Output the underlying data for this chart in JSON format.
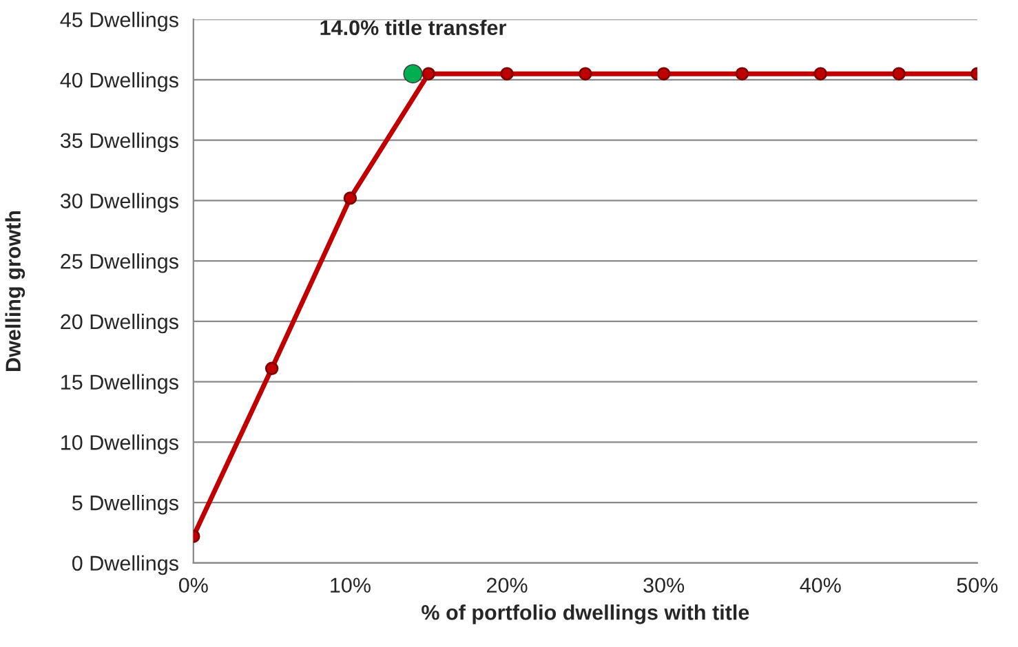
{
  "chart_data": {
    "type": "line",
    "xlabel": "% of portfolio dwellings with title",
    "ylabel": "Dwelling growth",
    "series": [
      {
        "color": "#c00000",
        "x": [
          0,
          5,
          10,
          15,
          20,
          25,
          30,
          35,
          40,
          45,
          50
        ],
        "values": [
          2.2,
          16.1,
          30.2,
          40.5,
          40.5,
          40.5,
          40.5,
          40.5,
          40.5,
          40.5,
          40.5
        ],
        "marker": "circle"
      },
      {
        "type": "scatter",
        "color": "#00b050",
        "x": [
          14
        ],
        "values": [
          40.5
        ],
        "marker": "circle"
      }
    ],
    "annotations": [
      {
        "text": "14.0% title transfer",
        "x": 14,
        "y": 40.5
      }
    ],
    "xlim": [
      0,
      50
    ],
    "xticks": [
      {
        "value": 0,
        "label": "0%"
      },
      {
        "value": 10,
        "label": "10%"
      },
      {
        "value": 20,
        "label": "20%"
      },
      {
        "value": 30,
        "label": "30%"
      },
      {
        "value": 40,
        "label": "40%"
      },
      {
        "value": 50,
        "label": "50%"
      }
    ],
    "ylim": [
      0,
      45
    ],
    "yticks": [
      {
        "value": 0,
        "label": "0 Dwellings"
      },
      {
        "value": 5,
        "label": "5 Dwellings"
      },
      {
        "value": 10,
        "label": "10 Dwellings"
      },
      {
        "value": 15,
        "label": "15 Dwellings"
      },
      {
        "value": 20,
        "label": "20 Dwellings"
      },
      {
        "value": 25,
        "label": "25 Dwellings"
      },
      {
        "value": 30,
        "label": "30 Dwellings"
      },
      {
        "value": 35,
        "label": "35 Dwellings"
      },
      {
        "value": 40,
        "label": "40 Dwellings"
      },
      {
        "value": 45,
        "label": "45 Dwellings"
      }
    ],
    "grid": "y",
    "legend": false
  }
}
